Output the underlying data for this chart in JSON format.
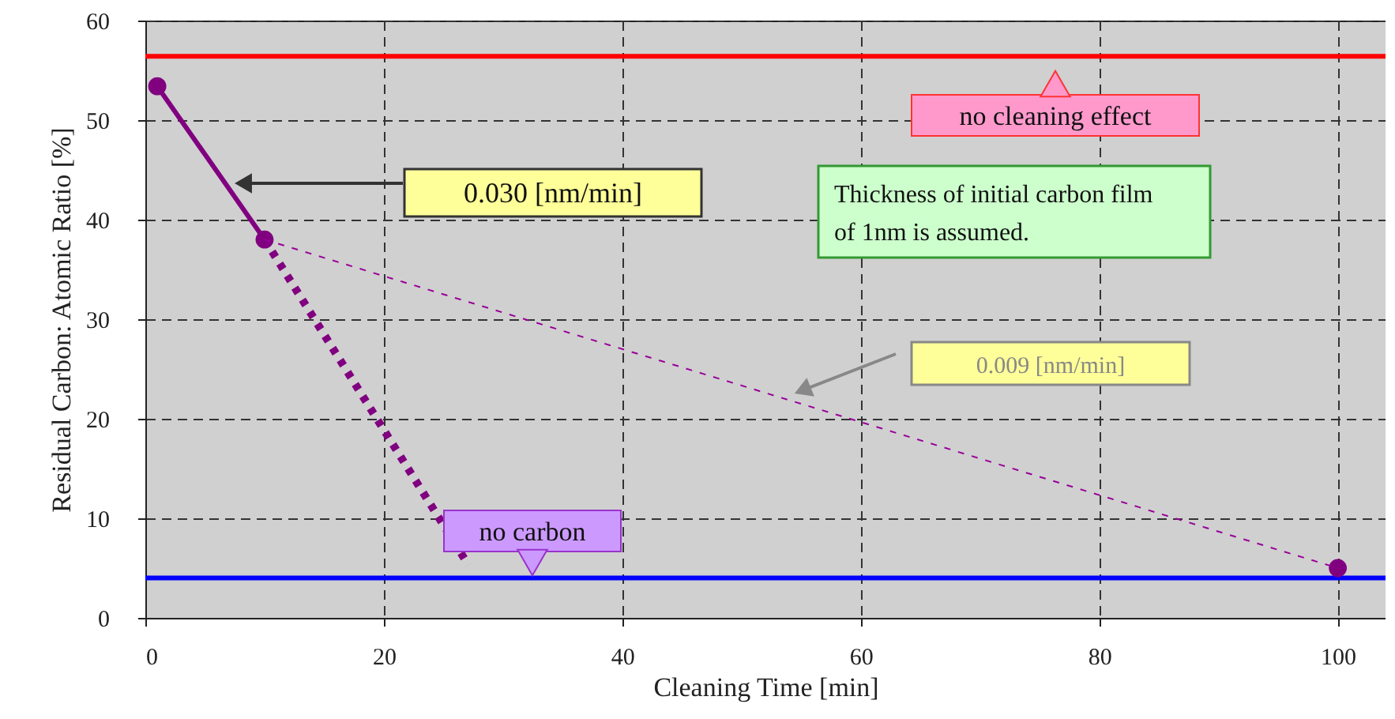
{
  "chart_data": {
    "type": "line",
    "xlabel": "Cleaning Time [min]",
    "ylabel": "Residual Carbon: Atomic Ratio [%]",
    "xlim": [
      0,
      104
    ],
    "xticks": [
      0,
      20,
      40,
      60,
      80,
      100
    ],
    "ylim": [
      0,
      60
    ],
    "yticks": [
      0,
      10,
      20,
      30,
      40,
      50,
      60
    ],
    "grid": true,
    "series": [
      {
        "type": "scatter",
        "color": "#800080",
        "marker": "circle",
        "x": [
          1,
          10,
          100
        ],
        "values": [
          53.4,
          38.0,
          5.0
        ]
      },
      {
        "color": "#800080",
        "line_style": "solid",
        "x": [
          1,
          10
        ],
        "values": [
          53.4,
          38.0
        ]
      },
      {
        "color": "#800080",
        "line_style": "dotted",
        "x": [
          10,
          27.1
        ],
        "values": [
          38.0,
          5.3
        ]
      },
      {
        "color": "#990099",
        "line_style": "dotted",
        "x": [
          10,
          100
        ],
        "values": [
          38.0,
          5.0
        ]
      }
    ],
    "ref_lines": [
      {
        "axis": "y",
        "value": 56.4,
        "label": "no cleaning effect",
        "color": "#ff0000"
      },
      {
        "axis": "y",
        "value": 4,
        "label": "no carbon",
        "color": "#0000ff"
      }
    ],
    "annotations": [
      "0.030 [nm/min]",
      "0.009 [nm/min]",
      "Thickness of initial carbon film\nof 1nm is assumed."
    ]
  }
}
